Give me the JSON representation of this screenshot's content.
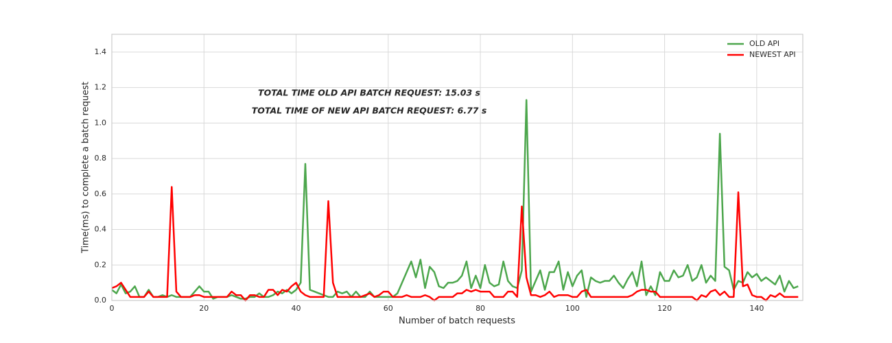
{
  "chart_data": {
    "type": "line",
    "xlabel": "Number of batch requests",
    "ylabel": "Time(ms) to complete a batch request",
    "annotations": [
      "TOTAL TIME OLD API BATCH REQUEST: 15.03 s",
      "TOTAL TIME OF NEW API BATCH REQUEST: 6.77 s"
    ],
    "x": [
      0,
      1,
      2,
      3,
      4,
      5,
      6,
      7,
      8,
      9,
      10,
      11,
      12,
      13,
      14,
      15,
      16,
      17,
      18,
      19,
      20,
      21,
      22,
      23,
      24,
      25,
      26,
      27,
      28,
      29,
      30,
      31,
      32,
      33,
      34,
      35,
      36,
      37,
      38,
      39,
      40,
      41,
      42,
      43,
      44,
      45,
      46,
      47,
      48,
      49,
      50,
      51,
      52,
      53,
      54,
      55,
      56,
      57,
      58,
      59,
      60,
      61,
      62,
      63,
      64,
      65,
      66,
      67,
      68,
      69,
      70,
      71,
      72,
      73,
      74,
      75,
      76,
      77,
      78,
      79,
      80,
      81,
      82,
      83,
      84,
      85,
      86,
      87,
      88,
      89,
      90,
      91,
      92,
      93,
      94,
      95,
      96,
      97,
      98,
      99,
      100,
      101,
      102,
      103,
      104,
      105,
      106,
      107,
      108,
      109,
      110,
      111,
      112,
      113,
      114,
      115,
      116,
      117,
      118,
      119,
      120,
      121,
      122,
      123,
      124,
      125,
      126,
      127,
      128,
      129,
      130,
      131,
      132,
      133,
      134,
      135,
      136,
      137,
      138,
      139,
      140,
      141,
      142,
      143,
      144,
      145,
      146,
      147,
      148,
      149
    ],
    "series": [
      {
        "name": "OLD API",
        "color": "#4ca64c",
        "values": [
          0.06,
          0.04,
          0.09,
          0.04,
          0.05,
          0.08,
          0.02,
          0.02,
          0.06,
          0.02,
          0.02,
          0.03,
          0.02,
          0.03,
          0.02,
          0.02,
          0.02,
          0.02,
          0.05,
          0.08,
          0.05,
          0.05,
          0.01,
          0.02,
          0.02,
          0.02,
          0.03,
          0.02,
          0.01,
          0.01,
          0.02,
          0.02,
          0.04,
          0.02,
          0.02,
          0.03,
          0.05,
          0.04,
          0.06,
          0.04,
          0.06,
          0.1,
          0.77,
          0.06,
          0.05,
          0.04,
          0.03,
          0.02,
          0.02,
          0.05,
          0.04,
          0.05,
          0.02,
          0.05,
          0.02,
          0.02,
          0.05,
          0.02,
          0.02,
          0.02,
          0.02,
          0.02,
          0.04,
          0.1,
          0.16,
          0.22,
          0.13,
          0.23,
          0.07,
          0.19,
          0.16,
          0.08,
          0.07,
          0.1,
          0.1,
          0.11,
          0.14,
          0.22,
          0.07,
          0.14,
          0.07,
          0.2,
          0.1,
          0.08,
          0.09,
          0.22,
          0.11,
          0.08,
          0.07,
          0.17,
          1.13,
          0.05,
          0.11,
          0.17,
          0.06,
          0.16,
          0.16,
          0.22,
          0.06,
          0.16,
          0.08,
          0.14,
          0.17,
          0.02,
          0.13,
          0.11,
          0.1,
          0.11,
          0.11,
          0.14,
          0.1,
          0.07,
          0.12,
          0.16,
          0.08,
          0.22,
          0.03,
          0.08,
          0.03,
          0.16,
          0.11,
          0.11,
          0.17,
          0.13,
          0.14,
          0.2,
          0.11,
          0.13,
          0.2,
          0.1,
          0.14,
          0.11,
          0.94,
          0.19,
          0.17,
          0.06,
          0.11,
          0.1,
          0.16,
          0.13,
          0.15,
          0.11,
          0.13,
          0.11,
          0.09,
          0.14,
          0.05,
          0.11,
          0.07,
          0.08
        ]
      },
      {
        "name": "NEWEST API",
        "color": "#ff0000",
        "values": [
          0.07,
          0.08,
          0.1,
          0.06,
          0.02,
          0.02,
          0.02,
          0.02,
          0.05,
          0.02,
          0.02,
          0.02,
          0.02,
          0.64,
          0.05,
          0.02,
          0.02,
          0.02,
          0.03,
          0.03,
          0.02,
          0.02,
          0.02,
          0.02,
          0.02,
          0.02,
          0.05,
          0.03,
          0.03,
          0.0,
          0.03,
          0.03,
          0.02,
          0.02,
          0.06,
          0.06,
          0.03,
          0.06,
          0.05,
          0.08,
          0.1,
          0.05,
          0.03,
          0.02,
          0.02,
          0.02,
          0.02,
          0.56,
          0.1,
          0.02,
          0.02,
          0.02,
          0.02,
          0.02,
          0.02,
          0.03,
          0.04,
          0.02,
          0.03,
          0.05,
          0.05,
          0.02,
          0.02,
          0.02,
          0.03,
          0.02,
          0.02,
          0.02,
          0.03,
          0.02,
          0.0,
          0.02,
          0.02,
          0.02,
          0.02,
          0.04,
          0.04,
          0.06,
          0.05,
          0.06,
          0.05,
          0.05,
          0.05,
          0.02,
          0.02,
          0.02,
          0.05,
          0.05,
          0.02,
          0.53,
          0.13,
          0.03,
          0.03,
          0.02,
          0.03,
          0.05,
          0.02,
          0.03,
          0.03,
          0.03,
          0.02,
          0.02,
          0.05,
          0.06,
          0.02,
          0.02,
          0.02,
          0.02,
          0.02,
          0.02,
          0.02,
          0.02,
          0.02,
          0.03,
          0.05,
          0.06,
          0.06,
          0.05,
          0.05,
          0.02,
          0.02,
          0.02,
          0.02,
          0.02,
          0.02,
          0.02,
          0.02,
          0.0,
          0.03,
          0.02,
          0.05,
          0.06,
          0.03,
          0.05,
          0.02,
          0.02,
          0.61,
          0.08,
          0.09,
          0.03,
          0.02,
          0.02,
          0.0,
          0.03,
          0.02,
          0.04,
          0.02,
          0.02,
          0.02,
          0.02
        ]
      }
    ],
    "xlim": [
      0,
      150
    ],
    "ylim": [
      0,
      1.5
    ],
    "xticks": [
      0,
      20,
      40,
      60,
      80,
      100,
      120,
      140
    ],
    "yticks": [
      {
        "value": 0,
        "label": "0.0"
      },
      0.2,
      0.4,
      0.6,
      0.8,
      {
        "value": 1,
        "label": "1.0"
      },
      1.2,
      1.4
    ],
    "grid": true,
    "legend": "upper right"
  }
}
